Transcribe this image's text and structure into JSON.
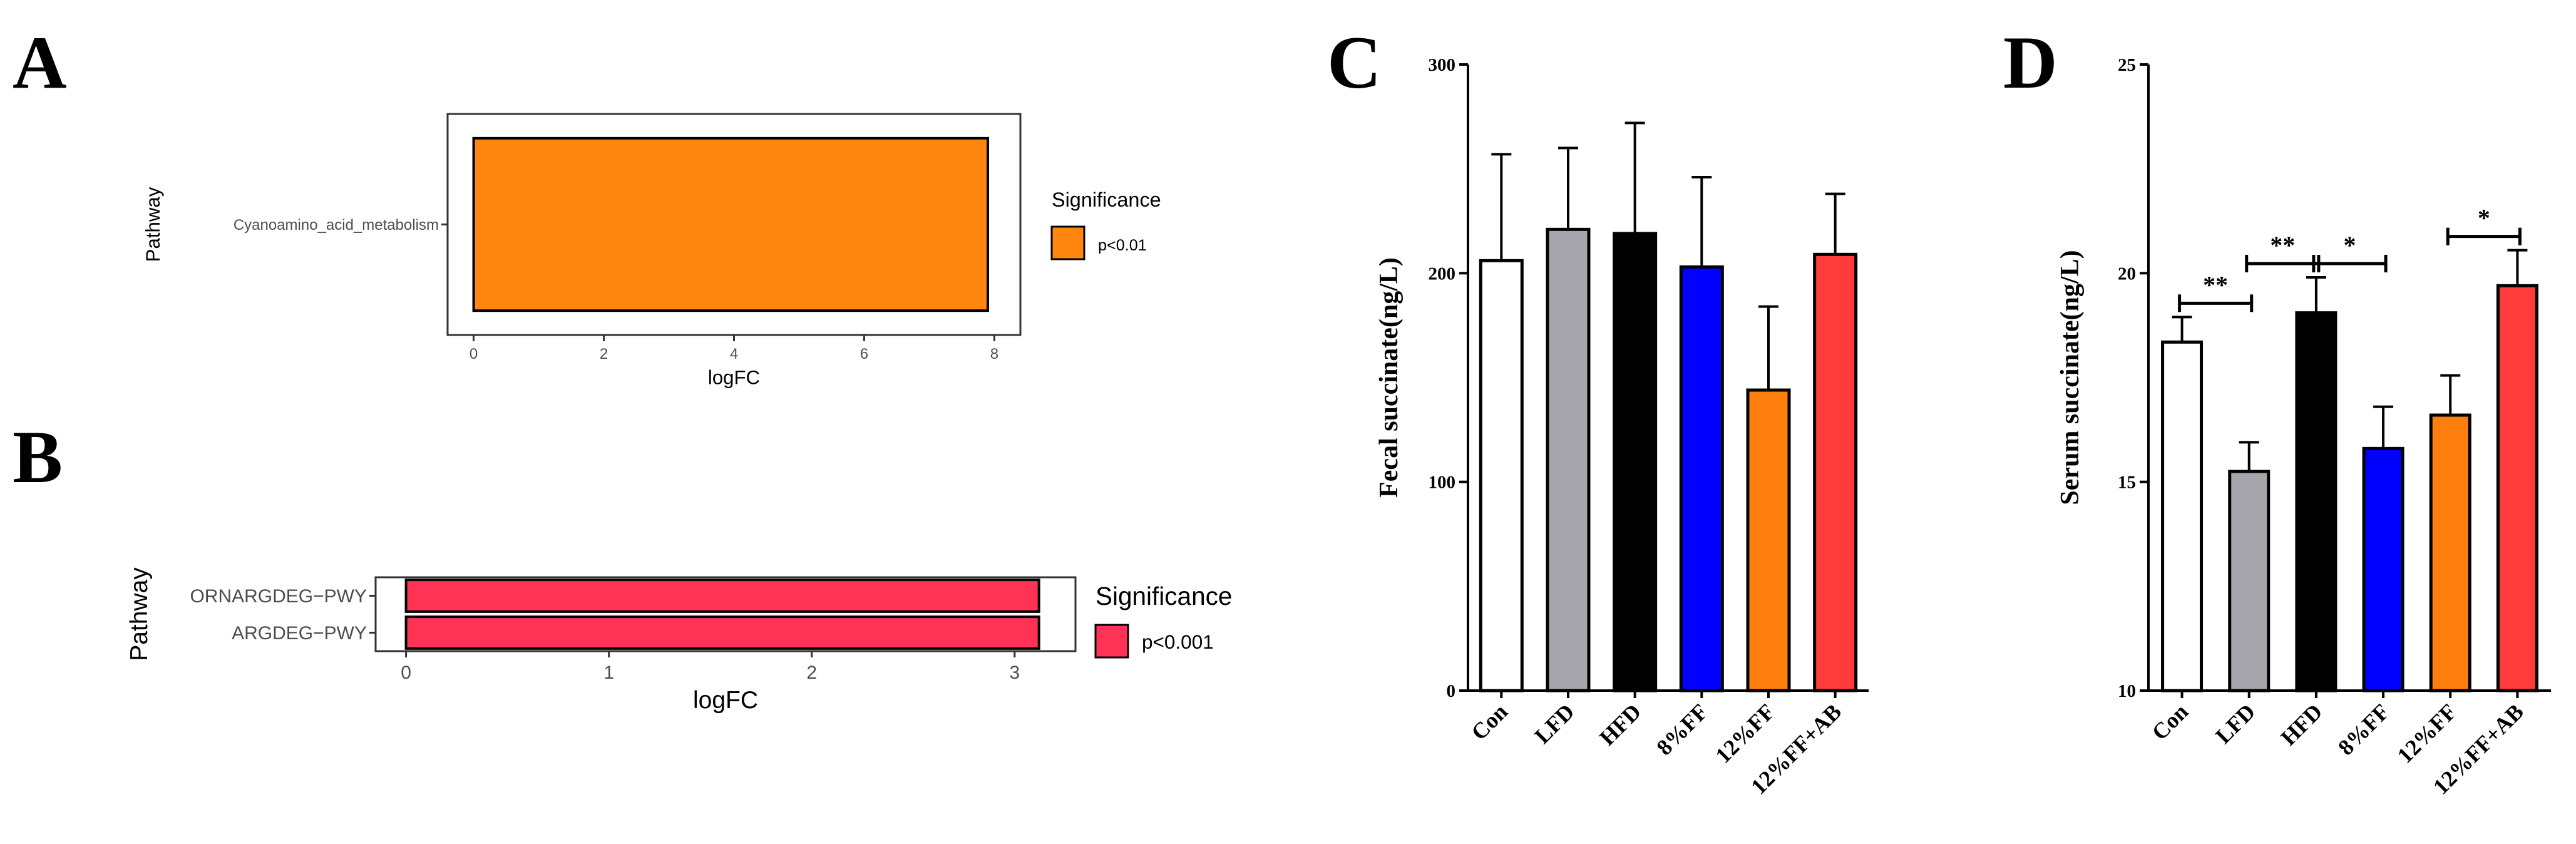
{
  "panel_labels": {
    "a": "A",
    "b": "B",
    "c": "C",
    "d": "D"
  },
  "colors": {
    "orange_ggplot": "#FF8710",
    "pink_ggplot": "#FF3355",
    "gray": "#A5A5AB",
    "black": "#000000",
    "blue": "#0000FF",
    "orange": "#FF7F0E",
    "red": "#FF3B3B",
    "white": "#FFFFFF"
  },
  "chart_data": [
    {
      "id": "A",
      "type": "bar",
      "orientation": "horizontal",
      "categories": [
        "Cyanoamino_acid_metabolism"
      ],
      "values": [
        7.9
      ],
      "xlabel": "logFC",
      "ylabel": "Pathway",
      "xlim": [
        -0.4,
        8.4
      ],
      "xticks": [
        "0",
        "2",
        "4",
        "6",
        "8"
      ],
      "legend": {
        "title": "Significance",
        "entries": [
          {
            "label": "p<0.01",
            "color": "#FF8710"
          }
        ],
        "position": "right"
      }
    },
    {
      "id": "B",
      "type": "bar",
      "orientation": "horizontal",
      "categories": [
        "ORNARGDEG−PWY",
        "ARGDEG−PWY"
      ],
      "values": [
        3.12,
        3.12
      ],
      "xlabel": "logFC",
      "ylabel": "Pathway",
      "xlim": [
        -0.15,
        3.3
      ],
      "xticks": [
        "0",
        "1",
        "2",
        "3"
      ],
      "legend": {
        "title": "Significance",
        "entries": [
          {
            "label": "p<0.001",
            "color": "#FF3355"
          }
        ],
        "position": "right"
      }
    },
    {
      "id": "C",
      "type": "bar",
      "ylabel": "Fecal succinate(ng/L)",
      "ylim": [
        0,
        300
      ],
      "yticks": [
        "0",
        "100",
        "200",
        "300"
      ],
      "categories": [
        "Con",
        "LFD",
        "HFD",
        "8%FF",
        "12%FF",
        "12%FF+AB"
      ],
      "values": [
        206,
        221,
        219,
        203,
        144,
        209
      ],
      "errors": [
        51,
        39,
        53,
        43,
        40,
        29
      ],
      "bar_colors": [
        "#FFFFFF",
        "#A5A5AB",
        "#000000",
        "#0000FF",
        "#FF7F0E",
        "#FF3B3B"
      ]
    },
    {
      "id": "D",
      "type": "bar",
      "ylabel": "Serum succinate(ng/L)",
      "ylim": [
        10,
        25
      ],
      "yticks": [
        "10",
        "15",
        "20",
        "25"
      ],
      "categories": [
        "Con",
        "LFD",
        "HFD",
        "8%FF",
        "12%FF",
        "12%FF+AB"
      ],
      "values": [
        18.35,
        15.25,
        19.05,
        15.8,
        16.6,
        19.7
      ],
      "errors": [
        0.6,
        0.7,
        0.85,
        1.0,
        0.95,
        0.85
      ],
      "bar_colors": [
        "#FFFFFF",
        "#A5A5AB",
        "#000000",
        "#0000FF",
        "#FF7F0E",
        "#FF3B3B"
      ],
      "significance": [
        {
          "from": 0,
          "to": 1,
          "label": "**"
        },
        {
          "from": 1,
          "to": 2,
          "label": "**"
        },
        {
          "from": 2,
          "to": 3,
          "label": "*"
        },
        {
          "from": 4,
          "to": 5,
          "label": "*"
        }
      ]
    }
  ]
}
